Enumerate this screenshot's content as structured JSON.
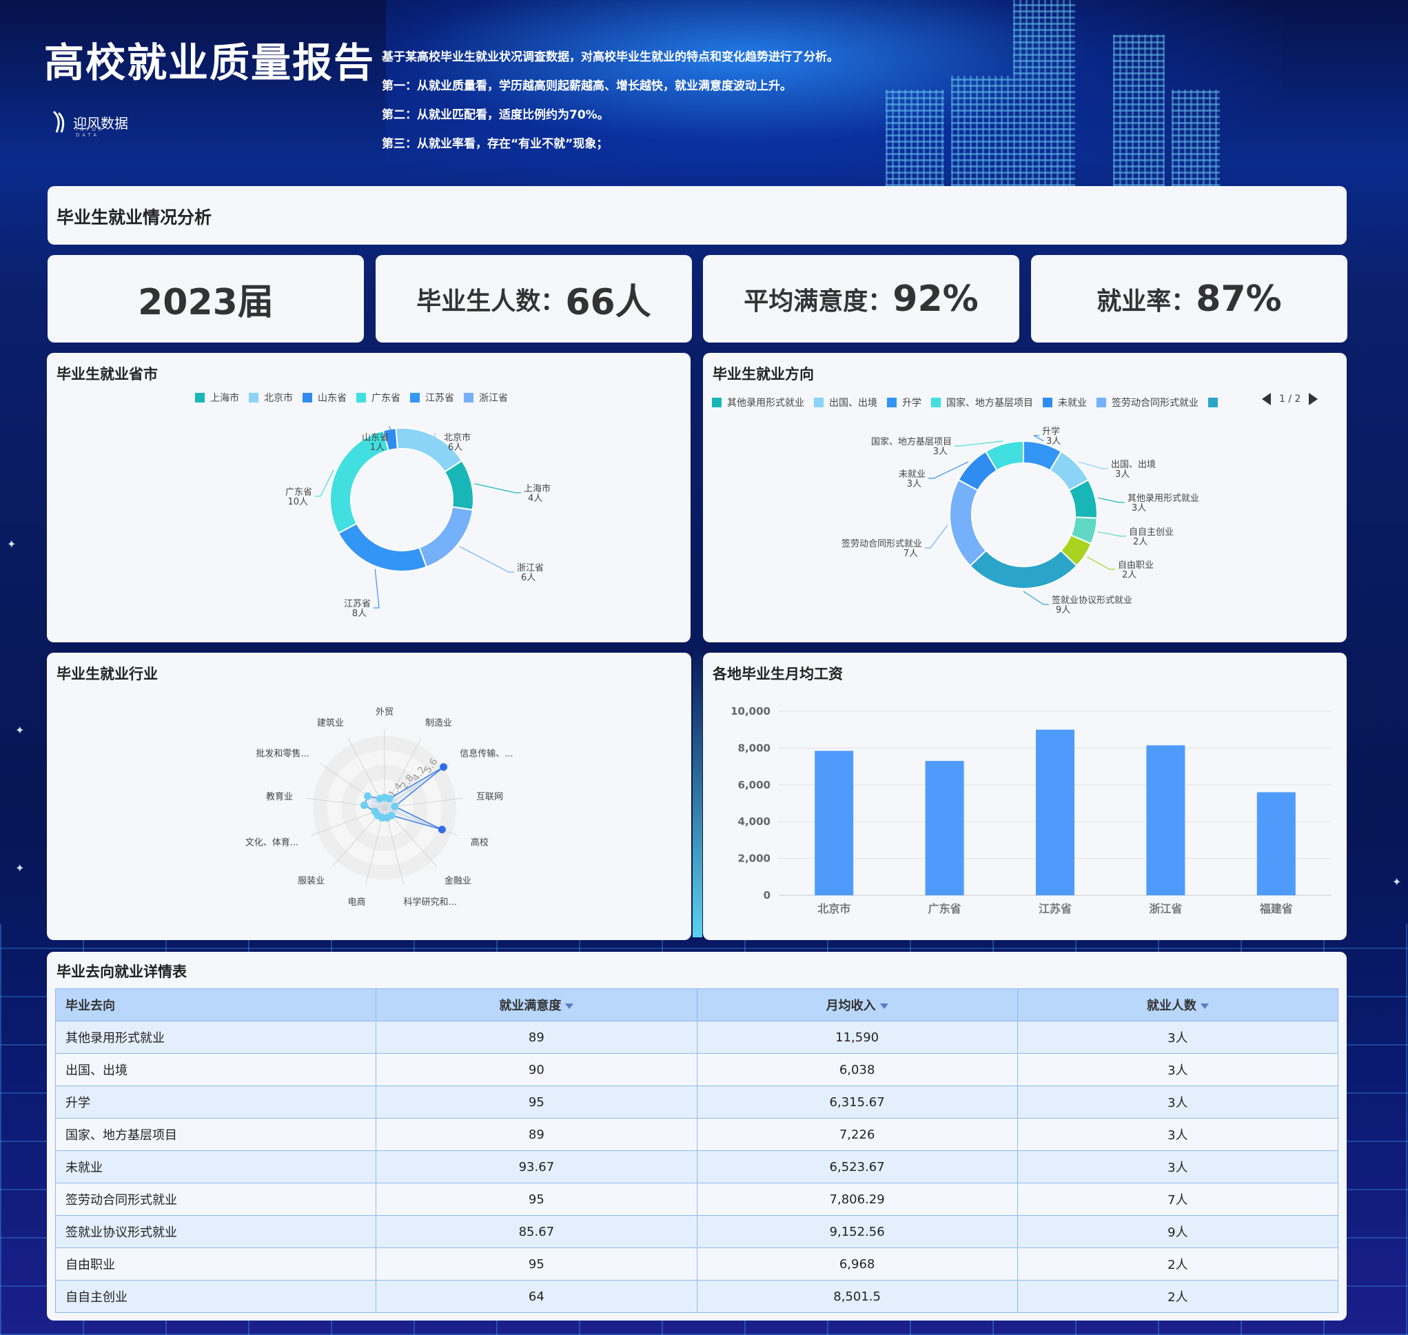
{
  "header": {
    "title": "高校就业质量报告",
    "logo_text": "迎风数据",
    "logo_sub": "INFOR DATA",
    "intro": [
      "基于某高校毕业生就业状况调查数据，对高校毕业生就业的特点和变化趋势进行了分析。",
      "第一：从就业质量看，学历越高则起薪越高、增长越快，就业满意度波动上升。",
      "第二：从就业匹配看，适度比例约为70%。",
      "第三：从就业率看，存在“有业不就”现象；"
    ]
  },
  "section_title": "毕业生就业情况分析",
  "kpis": {
    "year": "2023届",
    "graduates_label": "毕业生人数：",
    "graduates_value": "66人",
    "satisfaction_label": "平均满意度：",
    "satisfaction_value": "92%",
    "employment_label": "就业率：",
    "employment_value": "87%"
  },
  "colors": {
    "teal": "#19b6b8",
    "light_blue": "#8bd3f7",
    "blue": "#3395f5",
    "cyan": "#41dfe0",
    "sky": "#75b0fa",
    "lime": "#a8d320",
    "mint": "#5fd9c3",
    "deep_teal": "#2aa5c9",
    "bar": "#4e9bfb"
  },
  "province_panel": {
    "title": "毕业生就业省市",
    "chart_data": {
      "type": "pie",
      "donut": true,
      "legend": [
        "上海市",
        "北京市",
        "山东省",
        "广东省",
        "江苏省",
        "浙江省"
      ],
      "slices": [
        {
          "name": "上海市",
          "value": 4,
          "label": "4人",
          "color": "#19b6b8"
        },
        {
          "name": "浙江省",
          "value": 6,
          "label": "6人",
          "color": "#75b0fa"
        },
        {
          "name": "江苏省",
          "value": 8,
          "label": "8人",
          "color": "#3395f5"
        },
        {
          "name": "广东省",
          "value": 10,
          "label": "10人",
          "color": "#41dfe0"
        },
        {
          "name": "山东省",
          "value": 1,
          "label": "1人",
          "color": "#2f8cf0"
        },
        {
          "name": "北京市",
          "value": 6,
          "label": "6人",
          "color": "#8bd3f7"
        }
      ]
    }
  },
  "direction_panel": {
    "title": "毕业生就业方向",
    "pager": "1 / 2",
    "chart_data": {
      "type": "pie",
      "donut": true,
      "legend": [
        "其他录用形式就业",
        "出国、出境",
        "升学",
        "国家、地方基层项目",
        "未就业",
        "签劳动合同形式就业"
      ],
      "slices": [
        {
          "name": "升学",
          "value": 3,
          "label": "3人",
          "color": "#3395f5"
        },
        {
          "name": "出国、出境",
          "value": 3,
          "label": "3人",
          "color": "#8bd3f7"
        },
        {
          "name": "其他录用形式就业",
          "value": 3,
          "label": "3人",
          "color": "#19b6b8"
        },
        {
          "name": "自自主创业",
          "value": 2,
          "label": "2人",
          "color": "#5fd9c3"
        },
        {
          "name": "自由职业",
          "value": 2,
          "label": "2人",
          "color": "#a8d320"
        },
        {
          "name": "签就业协议形式就业",
          "value": 9,
          "label": "9人",
          "color": "#2aa5c9"
        },
        {
          "name": "签劳动合同形式就业",
          "value": 7,
          "label": "7人",
          "color": "#75b0fa"
        },
        {
          "name": "未就业",
          "value": 3,
          "label": "3人",
          "color": "#2f8cf0"
        },
        {
          "name": "国家、地方基层项目",
          "value": 3,
          "label": "3人",
          "color": "#41dfe0"
        }
      ]
    }
  },
  "industry_panel": {
    "title": "毕业生就业行业",
    "chart_data": {
      "type": "radar",
      "ticks": [
        "1.4",
        "2.8",
        "4.2",
        "5.6"
      ],
      "max": 7,
      "axes": [
        "外贸",
        "制造业",
        "信息传输、...",
        "互联网",
        "高校",
        "金融业",
        "科学研究和...",
        "电商",
        "服装业",
        "文化、体育...",
        "教育业",
        "批发和零售...",
        "建筑业"
      ],
      "values": [
        1,
        1,
        7,
        1,
        6,
        1,
        1,
        1,
        1,
        1,
        2,
        2,
        1
      ]
    }
  },
  "salary_panel": {
    "title": "各地毕业生月均工资",
    "chart_data": {
      "type": "bar",
      "categories": [
        "北京市",
        "广东省",
        "江苏省",
        "浙江省",
        "福建省"
      ],
      "values": [
        7850,
        7300,
        9000,
        8150,
        5600
      ],
      "ylim": [
        0,
        10000
      ],
      "yticks": [
        "0",
        "2,000",
        "4,000",
        "6,000",
        "8,000",
        "10,000"
      ],
      "grid": true
    }
  },
  "table": {
    "title": "毕业去向就业详情表",
    "headers": [
      "毕业去向",
      "就业满意度",
      "月均收入",
      "就业人数"
    ],
    "rows": [
      [
        "其他录用形式就业",
        "89",
        "11,590",
        "3人"
      ],
      [
        "出国、出境",
        "90",
        "6,038",
        "3人"
      ],
      [
        "升学",
        "95",
        "6,315.67",
        "3人"
      ],
      [
        "国家、地方基层项目",
        "89",
        "7,226",
        "3人"
      ],
      [
        "未就业",
        "93.67",
        "6,523.67",
        "3人"
      ],
      [
        "签劳动合同形式就业",
        "95",
        "7,806.29",
        "7人"
      ],
      [
        "签就业协议形式就业",
        "85.67",
        "9,152.56",
        "9人"
      ],
      [
        "自由职业",
        "95",
        "6,968",
        "2人"
      ],
      [
        "自自主创业",
        "64",
        "8,501.5",
        "2人"
      ]
    ]
  }
}
